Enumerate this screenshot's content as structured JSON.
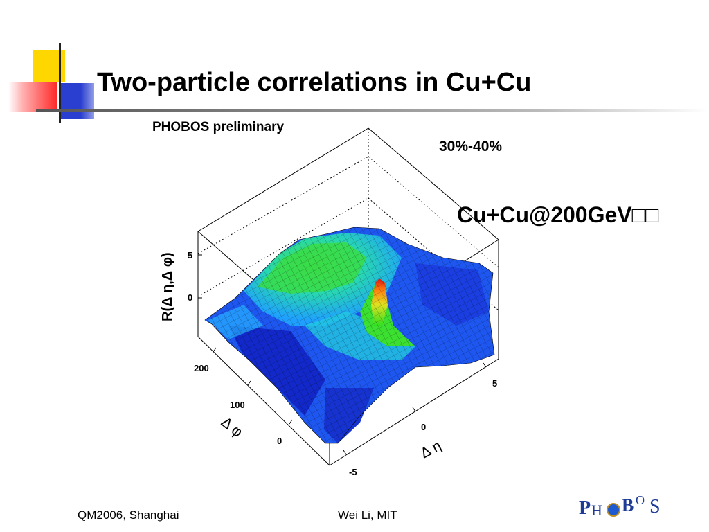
{
  "slide": {
    "title": "Two-particle correlations in Cu+Cu",
    "annotation": "Cu+Cu@200GeV",
    "annotation_suffix": "□□"
  },
  "figure": {
    "label_top": "PHOBOS preliminary",
    "centrality": "30%-40%",
    "z_axis_label": "R(Δ η,Δ φ)",
    "z_ticks": [
      "5",
      "0"
    ],
    "phi_axis_label": "Δ φ",
    "phi_ticks": [
      "200",
      "100",
      "0"
    ],
    "eta_axis_label": "Δ η",
    "eta_ticks": [
      "5",
      "0",
      "-5"
    ],
    "colors": [
      "#1020c0",
      "#1a5aff",
      "#1fb8ff",
      "#22e0a0",
      "#40e020",
      "#d0e020",
      "#ff8000",
      "#e01010"
    ]
  },
  "footer": {
    "left": "QM2006, Shanghai",
    "center": "Wei Li, MIT"
  },
  "logo": {
    "text": "PHOBOS"
  },
  "decor": {
    "accent_yellow": "#ffd700",
    "accent_red": "#ff2020",
    "accent_blue": "#2a3ed0"
  }
}
